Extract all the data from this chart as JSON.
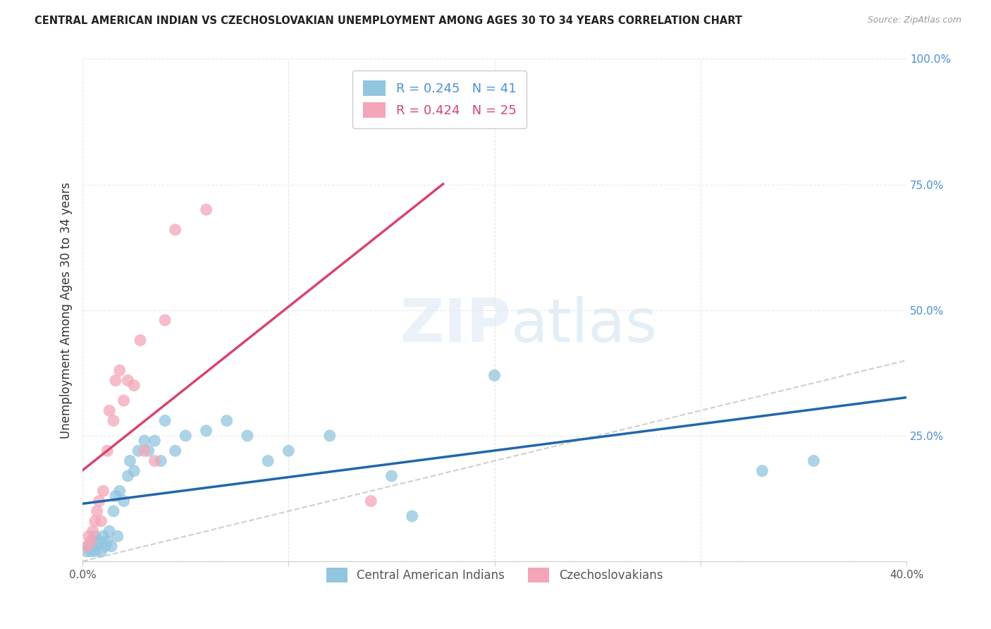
{
  "title": "CENTRAL AMERICAN INDIAN VS CZECHOSLOVAKIAN UNEMPLOYMENT AMONG AGES 30 TO 34 YEARS CORRELATION CHART",
  "source": "Source: ZipAtlas.com",
  "ylabel": "Unemployment Among Ages 30 to 34 years",
  "watermark": "ZIPatlas",
  "legend1_label": "Central American Indians",
  "legend2_label": "Czechoslovakians",
  "r1": 0.245,
  "n1": 41,
  "r2": 0.424,
  "n2": 25,
  "color_blue": "#92c5de",
  "color_pink": "#f4a6b8",
  "color_blue_line": "#2166ac",
  "color_pink_line": "#d6466e",
  "color_diag": "#bbbbbb",
  "xlim": [
    0.0,
    0.4
  ],
  "ylim": [
    0.0,
    1.0
  ],
  "yticks": [
    0.0,
    0.25,
    0.5,
    0.75,
    1.0
  ],
  "xticks": [
    0.0,
    0.1,
    0.2,
    0.3,
    0.4
  ],
  "xtick_labels": [
    "0.0%",
    "",
    "",
    "",
    "40.0%"
  ],
  "ytick_labels": [
    "",
    "25.0%",
    "50.0%",
    "75.0%",
    "100.0%"
  ],
  "blue_scatter_x": [
    0.002,
    0.003,
    0.004,
    0.005,
    0.006,
    0.006,
    0.007,
    0.008,
    0.009,
    0.01,
    0.011,
    0.012,
    0.013,
    0.014,
    0.015,
    0.016,
    0.017,
    0.018,
    0.02,
    0.022,
    0.023,
    0.025,
    0.027,
    0.03,
    0.032,
    0.035,
    0.038,
    0.04,
    0.045,
    0.05,
    0.06,
    0.07,
    0.08,
    0.09,
    0.1,
    0.12,
    0.15,
    0.16,
    0.2,
    0.33,
    0.355
  ],
  "blue_scatter_y": [
    0.02,
    0.03,
    0.02,
    0.04,
    0.05,
    0.02,
    0.03,
    0.04,
    0.02,
    0.05,
    0.03,
    0.04,
    0.06,
    0.03,
    0.1,
    0.13,
    0.05,
    0.14,
    0.12,
    0.17,
    0.2,
    0.18,
    0.22,
    0.24,
    0.22,
    0.24,
    0.2,
    0.28,
    0.22,
    0.25,
    0.26,
    0.28,
    0.25,
    0.2,
    0.22,
    0.25,
    0.17,
    0.09,
    0.37,
    0.18,
    0.2
  ],
  "pink_scatter_x": [
    0.002,
    0.003,
    0.004,
    0.005,
    0.006,
    0.007,
    0.008,
    0.009,
    0.01,
    0.012,
    0.013,
    0.015,
    0.016,
    0.018,
    0.02,
    0.022,
    0.025,
    0.028,
    0.03,
    0.035,
    0.04,
    0.045,
    0.06,
    0.14,
    0.2
  ],
  "pink_scatter_y": [
    0.03,
    0.05,
    0.04,
    0.06,
    0.08,
    0.1,
    0.12,
    0.08,
    0.14,
    0.22,
    0.3,
    0.28,
    0.36,
    0.38,
    0.32,
    0.36,
    0.35,
    0.44,
    0.22,
    0.2,
    0.48,
    0.66,
    0.7,
    0.12,
    0.96
  ],
  "grid_color": "#e8e8e8",
  "background_color": "#ffffff"
}
